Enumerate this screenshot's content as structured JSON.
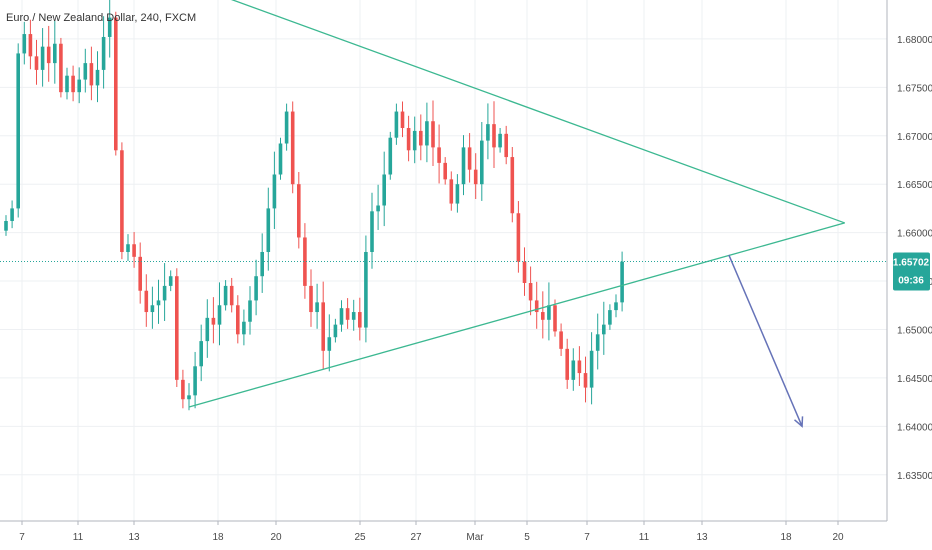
{
  "header": {
    "symbol_title": "Euro / New Zealand Dollar, 240, FXCM"
  },
  "colors": {
    "up": "#26a69a",
    "down": "#ef5350",
    "trendline": "#3cb891",
    "arrow": "#6673b8",
    "grid": "#eef0f3",
    "axis_text": "#4a4a4a",
    "price_tag": "#26a69a"
  },
  "chart_data": {
    "type": "candlestick",
    "title": "Euro / New Zealand Dollar, 240, FXCM",
    "xlabel": "",
    "ylabel": "",
    "ylim": [
      1.6315,
      1.6835
    ],
    "y_ticks": [
      1.635,
      1.64,
      1.645,
      1.65,
      1.655,
      1.66,
      1.665,
      1.67,
      1.675,
      1.68
    ],
    "y_tick_labels": [
      "1.63500",
      "1.64000",
      "1.64500",
      "1.65000",
      "1.65500",
      "1.66000",
      "1.66500",
      "1.67000",
      "1.67500",
      "1.68000"
    ],
    "x_tick_labels": [
      "7",
      "11",
      "13",
      "18",
      "20",
      "25",
      "27",
      "Mar",
      "5",
      "7",
      "11",
      "13",
      "18",
      "20"
    ],
    "grid": true,
    "last_price": "1.65702",
    "last_price_value": 1.65702,
    "countdown": "09:36",
    "closes": [
      1.6612,
      1.6625,
      1.6785,
      1.6805,
      1.6782,
      1.6768,
      1.6792,
      1.6775,
      1.6795,
      1.6745,
      1.6762,
      1.6745,
      1.6758,
      1.6775,
      1.6752,
      1.6768,
      1.6802,
      1.6822,
      1.6685,
      1.658,
      1.6588,
      1.6575,
      1.654,
      1.6518,
      1.6525,
      1.653,
      1.6545,
      1.6555,
      1.6448,
      1.6428,
      1.6432,
      1.6462,
      1.6488,
      1.6512,
      1.6505,
      1.6525,
      1.6545,
      1.6525,
      1.6495,
      1.6508,
      1.653,
      1.6555,
      1.658,
      1.6625,
      1.666,
      1.6692,
      1.6725,
      1.665,
      1.6595,
      1.6545,
      1.6518,
      1.6528,
      1.6478,
      1.6492,
      1.6505,
      1.6522,
      1.651,
      1.6518,
      1.6502,
      1.658,
      1.6622,
      1.6628,
      1.666,
      1.6698,
      1.6725,
      1.6708,
      1.6685,
      1.6705,
      1.669,
      1.6715,
      1.6688,
      1.6672,
      1.6655,
      1.663,
      1.665,
      1.6688,
      1.6665,
      1.665,
      1.6695,
      1.6712,
      1.6688,
      1.6702,
      1.6678,
      1.662,
      1.657,
      1.6548,
      1.653,
      1.6518,
      1.651,
      1.6525,
      1.6498,
      1.648,
      1.6448,
      1.6468,
      1.6455,
      1.644,
      1.6478,
      1.6495,
      1.6505,
      1.652,
      1.6528,
      1.657
    ],
    "trendlines": [
      {
        "from": {
          "candle": 30,
          "price": 1.642
        },
        "to": {
          "candle": 137.5,
          "price": 1.661
        }
      },
      {
        "from": {
          "candle": 22,
          "price": 1.6875
        },
        "to": {
          "candle": 137.5,
          "price": 1.661
        }
      }
    ],
    "projection_arrow": {
      "from": {
        "candle": 118.5,
        "price": 1.6577
      },
      "to": {
        "candle": 130.5,
        "price": 1.64
      }
    }
  }
}
